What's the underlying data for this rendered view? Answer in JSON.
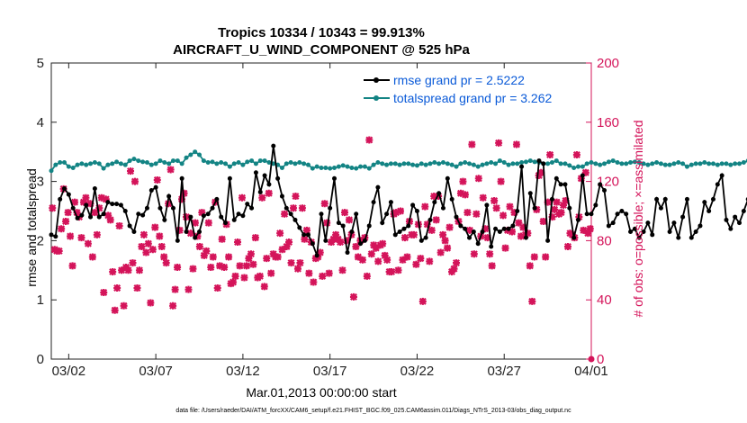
{
  "chart_data": {
    "type": "line",
    "title": [
      "Tropics 10334 / 10343 = 99.913%",
      "AIRCRAFT_U_WIND_COMPONENT @ 525 hPa"
    ],
    "xlabel": "Mar.01,2013 00:00:00 start",
    "ylabel_left": "rmse and totalspread",
    "ylabel_right": "# of obs: o=possible; ×=assimilated",
    "footnote": "data file: /Users/raeder/DAI/ATM_forcXX/CAM6_setup/f.e21.FHIST_BGC.f09_025.CAM6assim.011/Diags_NTrS_2013-03/obs_diag_output.nc",
    "xlim": [
      0,
      31
    ],
    "ylim_left": [
      0,
      5
    ],
    "ylim_right": [
      0,
      200
    ],
    "x_ticks": [
      1,
      6,
      11,
      16,
      21,
      26,
      31
    ],
    "x_tick_labels": [
      "03/02",
      "03/07",
      "03/12",
      "03/17",
      "03/22",
      "03/27",
      "04/01"
    ],
    "y_ticks_left": [
      0,
      1,
      2,
      3,
      4,
      5
    ],
    "y_ticks_right": [
      0,
      40,
      80,
      120,
      160,
      200
    ],
    "colors": {
      "rmse": "#000000",
      "spread": "#138484",
      "obs": "#d4145a",
      "right_axis": "#d4145a",
      "legend_text": "#0a5ad8"
    },
    "step_days": 0.25,
    "series": [
      {
        "name": "rmse grand pr = 2.5222",
        "axis": "left",
        "values": [
          2.1,
          2.07,
          2.7,
          2.88,
          2.78,
          2.55,
          2.38,
          2.43,
          2.6,
          2.4,
          2.88,
          2.4,
          2.45,
          2.65,
          2.62,
          2.62,
          2.6,
          2.5,
          2.25,
          2.15,
          2.45,
          2.43,
          2.55,
          2.85,
          2.9,
          2.55,
          2.35,
          2.75,
          2.55,
          2.0,
          3.05,
          2.15,
          2.4,
          2.05,
          2.15,
          2.42,
          2.45,
          2.55,
          2.7,
          2.4,
          2.3,
          3.05,
          2.35,
          2.45,
          2.42,
          2.62,
          2.55,
          3.15,
          2.82,
          3.1,
          2.95,
          3.6,
          3.05,
          2.75,
          2.55,
          2.45,
          2.35,
          2.22,
          2.1,
          2.1,
          1.95,
          1.75,
          2.45,
          2.0,
          2.55,
          3.05,
          2.3,
          2.25,
          1.8,
          2.15,
          2.45,
          1.95,
          2.0,
          2.25,
          2.65,
          2.9,
          2.3,
          2.45,
          2.65,
          2.1,
          2.15,
          2.2,
          2.25,
          2.6,
          2.5,
          2.0,
          2.05,
          2.35,
          2.65,
          2.8,
          2.55,
          3.05,
          2.7,
          2.4,
          2.25,
          2.2,
          2.05,
          2.15,
          1.95,
          2.15,
          2.6,
          1.9,
          2.2,
          2.15,
          2.2,
          2.2,
          2.25,
          2.5,
          3.25,
          2.05,
          2.8,
          2.55,
          3.35,
          3.3,
          2.0,
          2.7,
          3.05,
          2.95,
          2.95,
          2.55,
          2.05,
          2.35,
          3.1,
          2.45,
          2.45,
          2.6,
          2.95,
          2.85,
          2.25,
          2.3,
          2.45,
          2.5,
          2.45,
          2.15,
          2.2,
          2.05,
          2.15,
          2.3,
          2.1,
          2.7,
          2.55,
          2.7,
          2.15,
          2.3,
          2.05,
          2.4,
          2.7,
          2.05,
          2.15,
          2.25,
          2.65,
          2.5,
          2.7,
          2.95,
          3.1,
          2.35,
          2.2,
          2.4,
          2.3,
          2.5,
          2.7,
          2.9,
          3.2,
          2.75,
          3.15,
          3.15,
          3.4,
          2.7,
          2.8,
          3.15,
          3.4,
          2.85,
          2.35,
          2.3,
          2.5,
          2.35,
          2.5,
          2.15,
          2.45,
          2.2,
          2.35,
          2.65,
          2.45,
          2.2,
          2.5,
          2.7,
          2.6,
          2.55,
          3.35,
          2.7,
          2.15,
          2.65
        ]
      },
      {
        "name": "totalspread grand pr = 3.262",
        "axis": "left",
        "values": [
          3.18,
          3.28,
          3.32,
          3.32,
          3.25,
          3.23,
          3.28,
          3.3,
          3.28,
          3.3,
          3.32,
          3.3,
          3.22,
          3.28,
          3.3,
          3.33,
          3.3,
          3.28,
          3.35,
          3.38,
          3.35,
          3.33,
          3.32,
          3.28,
          3.3,
          3.35,
          3.32,
          3.3,
          3.35,
          3.35,
          3.3,
          3.4,
          3.45,
          3.5,
          3.45,
          3.35,
          3.32,
          3.33,
          3.3,
          3.32,
          3.3,
          3.25,
          3.3,
          3.32,
          3.28,
          3.33,
          3.35,
          3.3,
          3.35,
          3.35,
          3.32,
          3.3,
          3.28,
          3.23,
          3.3,
          3.32,
          3.3,
          3.32,
          3.3,
          3.28,
          3.22,
          3.25,
          3.23,
          3.23,
          3.22,
          3.23,
          3.25,
          3.27,
          3.25,
          3.23,
          3.22,
          3.25,
          3.25,
          3.22,
          3.28,
          3.32,
          3.3,
          3.28,
          3.3,
          3.3,
          3.28,
          3.3,
          3.3,
          3.28,
          3.27,
          3.3,
          3.28,
          3.3,
          3.32,
          3.3,
          3.32,
          3.3,
          3.28,
          3.25,
          3.3,
          3.32,
          3.3,
          3.28,
          3.25,
          3.28,
          3.3,
          3.32,
          3.3,
          3.35,
          3.32,
          3.28,
          3.3,
          3.3,
          3.32,
          3.33,
          3.35,
          3.33,
          3.32,
          3.3,
          3.3,
          3.32,
          3.35,
          3.3,
          3.3,
          3.27,
          3.23,
          3.25,
          3.25,
          3.3,
          3.32,
          3.3,
          3.28,
          3.3,
          3.33,
          3.35,
          3.32,
          3.3,
          3.3,
          3.32,
          3.33,
          3.32,
          3.3,
          3.28,
          3.3,
          3.32,
          3.3,
          3.28,
          3.28,
          3.3,
          3.32,
          3.3,
          3.25,
          3.28,
          3.3,
          3.3,
          3.32,
          3.3,
          3.3,
          3.28,
          3.3,
          3.3,
          3.28,
          3.3,
          3.3,
          3.32,
          3.35,
          3.32,
          3.3,
          3.32,
          3.3,
          3.3,
          3.32,
          3.35,
          3.33,
          3.3,
          3.3,
          3.28,
          3.3,
          3.32,
          3.3,
          3.3,
          3.28,
          3.32,
          3.3,
          3.3,
          3.33,
          3.35,
          3.32,
          3.3,
          3.3,
          3.32,
          3.35,
          3.33,
          3.3,
          3.3,
          3.3
        ]
      },
      {
        "name": "# assimilated",
        "axis": "right",
        "marker": "x",
        "values": [
          102,
          74,
          73,
          73,
          88,
          115,
          93,
          99,
          83,
          63,
          106,
          99,
          96,
          82,
          106,
          109,
          78,
          105,
          69,
          99,
          84,
          102,
          109,
          45,
          108,
          97,
          94,
          59,
          33,
          48,
          90,
          60,
          36,
          62,
          60,
          127,
          65,
          120,
          48,
          60,
          76,
          84,
          72,
          78,
          38,
          74,
          89,
          121,
          83,
          76,
          69,
          65,
          105,
          128,
          36,
          47,
          62,
          87,
          108,
          112,
          96,
          47,
          85,
          61,
          92,
          83,
          76,
          99,
          70,
          73,
          92,
          62,
          69,
          106,
          48,
          63,
          81,
          62,
          91,
          69,
          51,
          52,
          56,
          79,
          63,
          109,
          55,
          63,
          68,
          71,
          64,
          82,
          55,
          56,
          109,
          49,
          68,
          112,
          58,
          71,
          69,
          69,
          85,
          74,
          98,
          76,
          79,
          65,
          102,
          110,
          61,
          65,
          102,
          81,
          87,
          58,
          79,
          52,
          68,
          69,
          72,
          56,
          105,
          92,
          58,
          79,
          81,
          84,
          81,
          79,
          60,
          99,
          80,
          94,
          84,
          42,
          76,
          69,
          80,
          67,
          82,
          56,
          148,
          71,
          77,
          75,
          66,
          77,
          78,
          70,
          67,
          59,
          59,
          98,
          99,
          60,
          100,
          67,
          82,
          69,
          93,
          84,
          84,
          64,
          91,
          68,
          39,
          103,
          91,
          66,
          87,
          110,
          94,
          110,
          72,
          84,
          80,
          75,
          89,
          59,
          61,
          65,
          93,
          112,
          120,
          111,
          99,
          87,
          145,
          71,
          98,
          122,
          83,
          109,
          88,
          82,
          71,
          63,
          107,
          102,
          146,
          120,
          97,
          75,
          87,
          103,
          86,
          99,
          145,
          92,
          83,
          89,
          84,
          85,
          63,
          39,
          69,
          101,
          124,
          126,
          93,
          69,
          106,
          138,
          96,
          101,
          106,
          98,
          99,
          104,
          107,
          76,
          85,
          84,
          82,
          138,
          96,
          122,
          87,
          126,
          85,
          88
        ]
      }
    ],
    "obs_markers_count": 0
  },
  "legend": {
    "rmse_label": "rmse grand pr = 2.5222",
    "spread_label": "totalspread grand pr = 3.262"
  }
}
